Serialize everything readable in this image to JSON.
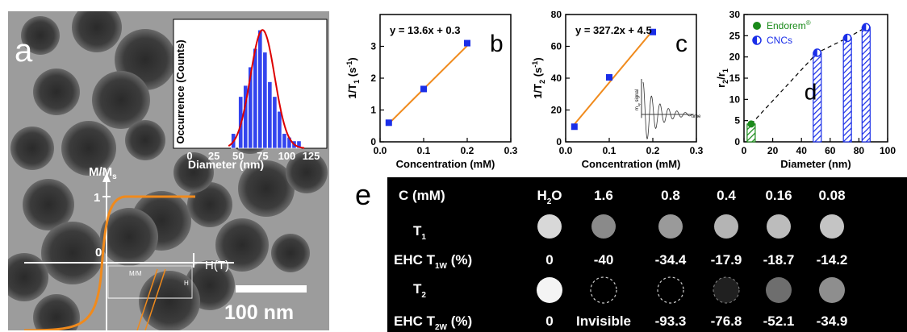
{
  "figure": {
    "panel_a": {
      "label": "a",
      "scale_bar": "100 nm",
      "inset_hist": {
        "ylabel": "Occurrence (Counts)",
        "xlabel": "Diameter (nm)",
        "xticks": [
          "0",
          "25",
          "50",
          "75",
          "100",
          "125"
        ]
      },
      "mag": {
        "ylabel_main": "M/M",
        "ylabel_sub": "s",
        "y_tick_one": "1",
        "origin": "0",
        "xlabel": "H(T)",
        "inset_label": "M/M",
        "inset_h": "H"
      }
    },
    "panel_b": {
      "label": "b",
      "equation": "y = 13.6x + 0.3"
    },
    "panel_c": {
      "label": "c",
      "equation": "y = 327.2x + 4.5",
      "inset_ylabel": "m",
      "inset_ysub": "xy",
      "inset_ysuffix": " signal",
      "inset_xlabel": "time"
    },
    "panel_d": {
      "label": "d"
    },
    "panel_e": {
      "label": "e",
      "header_label": "C (mM)",
      "columns": [
        "H",
        "1.6",
        "0.8",
        "0.4",
        "0.16",
        "0.08"
      ],
      "h2o_sub": "2",
      "h2o_end": "O",
      "t1_label": "T",
      "t1_sub": "1",
      "t2_label": "T",
      "t2_sub": "2",
      "ehc1_label": "EHC T",
      "ehc1_sub": "1W",
      "ehc1_end": " (%)",
      "ehc2_label": "EHC T",
      "ehc2_sub": "2W",
      "ehc2_end": " (%)",
      "ehc1_values": [
        "0",
        "-40",
        "-34.4",
        "-17.9",
        "-18.7",
        "-14.2"
      ],
      "ehc2_values": [
        "0",
        "Invisible",
        "-93.3",
        "-76.8",
        "-52.1",
        "-34.9"
      ],
      "t1_gray": [
        "#d8d8d8",
        "#8a8a8a",
        "#9a9a9a",
        "#b4b4b4",
        "#bcbcbc",
        "#c4c4c4"
      ],
      "t2_gray": [
        "#f4f4f4",
        "none",
        "none",
        "#202020",
        "#6e6e6e",
        "#8e8e8e"
      ]
    }
  },
  "chart_data": [
    {
      "type": "bar",
      "panel": "a-inset",
      "xlabel": "Diameter (nm)",
      "ylabel": "Occurrence (Counts)",
      "xlim": [
        0,
        137
      ],
      "bins_center": [
        45,
        52.5,
        57.5,
        62.5,
        67.5,
        72.5,
        77.5,
        82.5,
        87.5,
        92.5,
        97.5,
        102.5,
        107.5,
        112.5
      ],
      "values": [
        2,
        7,
        8.5,
        11,
        13.5,
        16,
        13,
        9,
        7,
        5,
        2,
        1.5,
        1,
        1
      ],
      "fit": "gaussian",
      "fit_color": "#dd0000",
      "bar_color": "#3344ee"
    },
    {
      "type": "scatter",
      "panel": "b",
      "xlabel": "Concentration (mM)",
      "ylabel": "1/T",
      "ylabel_sub": "1",
      "ylabel_suffix": " (s",
      "ylabel_sup": "-1",
      "ylabel_end": ")",
      "xlim": [
        0,
        0.3
      ],
      "ylim": [
        0,
        4
      ],
      "xticks": [
        "0.0",
        "0.1",
        "0.2",
        "0.3"
      ],
      "yticks": [
        "0",
        "1",
        "2",
        "3"
      ],
      "points": [
        [
          0.02,
          0.6
        ],
        [
          0.1,
          1.66
        ],
        [
          0.2,
          3.1
        ]
      ],
      "fit": [
        [
          0.02,
          0.572
        ],
        [
          0.2,
          3.02
        ]
      ],
      "marker_color": "#1a2ee8",
      "line_color": "#f08a1c"
    },
    {
      "type": "scatter",
      "panel": "c",
      "xlabel": "Concentration (mM)",
      "ylabel": "1/T",
      "ylabel_sub": "2",
      "ylabel_suffix": " (s",
      "ylabel_sup": "-1",
      "ylabel_end": ")",
      "xlim": [
        0,
        0.3
      ],
      "ylim": [
        0,
        80
      ],
      "xticks": [
        "0.0",
        "0.1",
        "0.2",
        "0.3"
      ],
      "yticks": [
        "0",
        "20",
        "40",
        "60",
        "80"
      ],
      "points": [
        [
          0.02,
          9.5
        ],
        [
          0.1,
          40.5
        ],
        [
          0.2,
          69
        ]
      ],
      "fit": [
        [
          0.02,
          11.0
        ],
        [
          0.2,
          70.0
        ]
      ],
      "marker_color": "#1a2ee8",
      "line_color": "#f08a1c"
    },
    {
      "type": "bar",
      "panel": "d",
      "xlabel": "Diameter (nm)",
      "ylabel": "r",
      "ylabel_sub1": "2",
      "ylabel_mid": "/r",
      "ylabel_sub2": "1",
      "xlim": [
        0,
        100
      ],
      "ylim": [
        0,
        30
      ],
      "xticks": [
        "0",
        "20",
        "40",
        "60",
        "80",
        "100"
      ],
      "yticks": [
        "0",
        "5",
        "10",
        "15",
        "20",
        "25",
        "30"
      ],
      "series": [
        {
          "name": "Endorem",
          "name_sup": "®",
          "x": [
            5
          ],
          "values": [
            4.2
          ],
          "color": "#1a8a1a"
        },
        {
          "name": "CNCs",
          "x": [
            51,
            72,
            85
          ],
          "values": [
            21,
            24.5,
            27
          ],
          "color": "#1a2ee8"
        }
      ],
      "trend": [
        [
          5,
          4.2
        ],
        [
          51,
          21
        ],
        [
          72,
          24.5
        ],
        [
          85,
          27
        ]
      ]
    }
  ]
}
